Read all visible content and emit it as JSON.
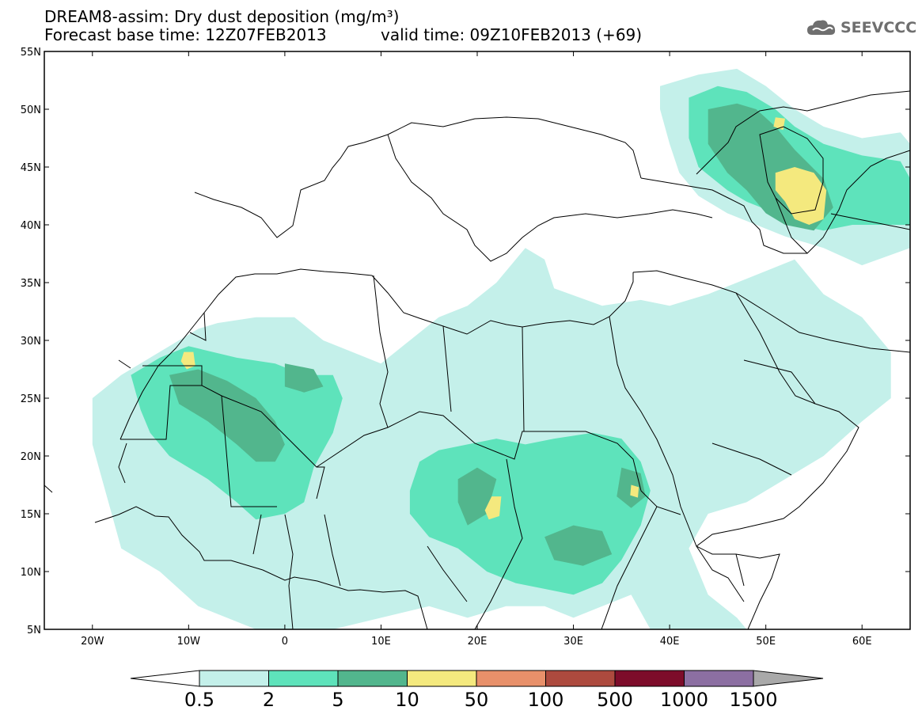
{
  "header": {
    "title": "DREAM8-assim: Dry dust deposition (mg/m³)",
    "base_time": "Forecast base time: 12Z07FEB2013",
    "valid_time": "valid time: 09Z10FEB2013 (+69)",
    "logo_text": "SEEVCCC"
  },
  "map": {
    "lon_range": [
      -25,
      65
    ],
    "lat_range": [
      5,
      55
    ],
    "lon_ticks": [
      {
        "value": -20,
        "label": "20W"
      },
      {
        "value": -10,
        "label": "10W"
      },
      {
        "value": 0,
        "label": "0"
      },
      {
        "value": 10,
        "label": "10E"
      },
      {
        "value": 20,
        "label": "20E"
      },
      {
        "value": 30,
        "label": "30E"
      },
      {
        "value": 40,
        "label": "40E"
      },
      {
        "value": 50,
        "label": "50E"
      },
      {
        "value": 60,
        "label": "60E"
      }
    ],
    "lat_ticks": [
      {
        "value": 55,
        "label": "55N"
      },
      {
        "value": 50,
        "label": "50N"
      },
      {
        "value": 45,
        "label": "45N"
      },
      {
        "value": 40,
        "label": "40N"
      },
      {
        "value": 35,
        "label": "35N"
      },
      {
        "value": 30,
        "label": "30N"
      },
      {
        "value": 25,
        "label": "25N"
      },
      {
        "value": 20,
        "label": "20N"
      },
      {
        "value": 15,
        "label": "15N"
      },
      {
        "value": 10,
        "label": "10N"
      },
      {
        "value": 5,
        "label": "5N"
      }
    ]
  },
  "colorbar": {
    "labels": [
      "0.5",
      "2",
      "5",
      "10",
      "50",
      "100",
      "500",
      "1000",
      "1500"
    ],
    "colors": [
      "#c4f0ea",
      "#5ee3bb",
      "#52b68d",
      "#f4e97e",
      "#e8906a",
      "#ad4a3e",
      "#7d0c2a",
      "#8c6fa2",
      "#a9a9a9"
    ],
    "under_color": "#ffffff"
  },
  "chart_data": {
    "type": "heatmap",
    "title": "DREAM8-assim: Dry dust deposition (mg/m³)",
    "levels": [
      0.5,
      2,
      5,
      10,
      50,
      100,
      500,
      1000,
      1500
    ],
    "units": "mg/m³",
    "xlim": [
      -25,
      65
    ],
    "ylim": [
      5,
      55
    ],
    "regions": [
      {
        "level": 0.5,
        "polygon": [
          [
            -20,
            25
          ],
          [
            -17,
            27
          ],
          [
            -12,
            29.5
          ],
          [
            -9,
            31
          ],
          [
            -7,
            31.5
          ],
          [
            -3,
            32
          ],
          [
            1,
            32
          ],
          [
            4,
            30
          ],
          [
            7,
            29
          ],
          [
            10,
            28
          ],
          [
            13,
            30
          ],
          [
            16,
            32
          ],
          [
            19,
            33
          ],
          [
            22,
            35
          ],
          [
            25,
            38
          ],
          [
            27,
            37
          ],
          [
            28,
            34.5
          ],
          [
            33,
            33
          ],
          [
            37,
            33.5
          ],
          [
            40,
            33
          ],
          [
            44,
            34
          ],
          [
            47,
            35
          ],
          [
            50,
            36
          ],
          [
            53,
            37
          ],
          [
            56,
            34
          ],
          [
            60,
            32
          ],
          [
            63,
            29
          ],
          [
            63,
            25
          ],
          [
            60,
            23
          ],
          [
            56,
            20
          ],
          [
            52,
            18
          ],
          [
            48,
            16
          ],
          [
            44,
            15
          ],
          [
            42,
            12
          ],
          [
            44,
            8
          ],
          [
            47,
            6
          ],
          [
            48,
            5
          ],
          [
            38,
            5
          ],
          [
            36,
            8
          ],
          [
            33,
            7
          ],
          [
            30,
            6
          ],
          [
            27,
            7
          ],
          [
            23,
            7
          ],
          [
            19,
            6
          ],
          [
            15,
            7
          ],
          [
            10,
            6
          ],
          [
            5,
            5
          ],
          [
            -3,
            5
          ],
          [
            -9,
            7
          ],
          [
            -13,
            10
          ],
          [
            -17,
            12
          ],
          [
            -18,
            15
          ],
          [
            -19,
            18
          ],
          [
            -20,
            21
          ]
        ]
      },
      {
        "level": 0.5,
        "polygon": [
          [
            39,
            52
          ],
          [
            43,
            53
          ],
          [
            47,
            53.5
          ],
          [
            50,
            52
          ],
          [
            53,
            50
          ],
          [
            56,
            48.5
          ],
          [
            60,
            47.5
          ],
          [
            64,
            48
          ],
          [
            65,
            47
          ],
          [
            65,
            38
          ],
          [
            60,
            36.5
          ],
          [
            56,
            38
          ],
          [
            52,
            39
          ],
          [
            49,
            40
          ],
          [
            46,
            41
          ],
          [
            43,
            42.5
          ],
          [
            41,
            44.5
          ],
          [
            40,
            47
          ],
          [
            39,
            50
          ]
        ]
      },
      {
        "level": 2,
        "polygon": [
          [
            -16,
            27
          ],
          [
            -13,
            28.5
          ],
          [
            -10,
            29.5
          ],
          [
            -5,
            28.5
          ],
          [
            -1,
            28
          ],
          [
            2,
            27
          ],
          [
            5,
            27
          ],
          [
            6,
            25
          ],
          [
            5,
            22
          ],
          [
            3,
            19
          ],
          [
            2,
            16
          ],
          [
            0,
            15
          ],
          [
            -3,
            14.5
          ],
          [
            -5,
            16
          ],
          [
            -8,
            18
          ],
          [
            -12,
            20
          ],
          [
            -14,
            22
          ],
          [
            -15,
            24
          ]
        ]
      },
      {
        "level": 2,
        "polygon": [
          [
            14,
            19.5
          ],
          [
            16,
            20.5
          ],
          [
            19,
            21
          ],
          [
            22,
            21.5
          ],
          [
            25,
            21
          ],
          [
            28,
            21.5
          ],
          [
            32,
            22
          ],
          [
            35,
            21.5
          ],
          [
            37,
            19.5
          ],
          [
            38,
            17
          ],
          [
            37,
            14
          ],
          [
            35,
            11
          ],
          [
            33,
            9
          ],
          [
            30,
            8
          ],
          [
            27,
            8.5
          ],
          [
            24,
            9
          ],
          [
            21,
            10
          ],
          [
            18,
            12
          ],
          [
            15,
            13
          ],
          [
            13,
            15
          ],
          [
            13,
            17
          ]
        ]
      },
      {
        "level": 2,
        "polygon": [
          [
            42,
            51
          ],
          [
            45,
            52
          ],
          [
            48,
            51.5
          ],
          [
            51,
            50
          ],
          [
            53,
            48.5
          ],
          [
            56,
            47
          ],
          [
            60,
            46
          ],
          [
            64,
            45.5
          ],
          [
            65,
            44
          ],
          [
            65,
            40
          ],
          [
            62,
            40
          ],
          [
            59,
            40
          ],
          [
            56,
            39.5
          ],
          [
            53,
            40
          ],
          [
            51,
            41
          ],
          [
            48,
            42
          ],
          [
            46,
            43
          ],
          [
            43,
            45
          ],
          [
            42,
            47.5
          ]
        ]
      },
      {
        "level": 5,
        "polygon": [
          [
            -12,
            27
          ],
          [
            -9,
            27.5
          ],
          [
            -6,
            26.5
          ],
          [
            -3,
            25
          ],
          [
            -1,
            23
          ],
          [
            0,
            21
          ],
          [
            -1,
            19.5
          ],
          [
            -3,
            19.5
          ],
          [
            -5,
            21
          ],
          [
            -8,
            23
          ],
          [
            -11,
            24.5
          ]
        ]
      },
      {
        "level": 5,
        "polygon": [
          [
            0,
            28
          ],
          [
            3,
            27.5
          ],
          [
            4,
            26
          ],
          [
            2,
            25.5
          ],
          [
            0,
            26
          ]
        ]
      },
      {
        "level": 5,
        "polygon": [
          [
            18,
            18
          ],
          [
            20,
            19
          ],
          [
            22,
            18
          ],
          [
            21,
            15
          ],
          [
            19,
            14
          ],
          [
            18,
            16
          ]
        ]
      },
      {
        "level": 5,
        "polygon": [
          [
            27,
            13
          ],
          [
            30,
            14
          ],
          [
            33,
            13.5
          ],
          [
            34,
            11.5
          ],
          [
            31,
            10.5
          ],
          [
            28,
            11
          ]
        ]
      },
      {
        "level": 5,
        "polygon": [
          [
            35,
            19
          ],
          [
            37,
            18.5
          ],
          [
            37.5,
            16.5
          ],
          [
            36,
            15.5
          ],
          [
            34.5,
            16.5
          ]
        ]
      },
      {
        "level": 5,
        "polygon": [
          [
            44,
            50
          ],
          [
            47,
            50.5
          ],
          [
            49,
            50
          ],
          [
            51,
            48.5
          ],
          [
            53,
            46.5
          ],
          [
            56,
            44
          ],
          [
            57,
            41.5
          ],
          [
            55,
            39.5
          ],
          [
            52,
            40
          ],
          [
            50,
            41
          ],
          [
            48,
            43
          ],
          [
            46,
            44.5
          ],
          [
            44,
            47
          ]
        ]
      },
      {
        "level": 10,
        "polygon": [
          [
            -10.5,
            29
          ],
          [
            -9.5,
            29
          ],
          [
            -9.3,
            27.8
          ],
          [
            -10.2,
            27.5
          ],
          [
            -10.8,
            28.2
          ]
        ]
      },
      {
        "level": 10,
        "polygon": [
          [
            21.5,
            16.5
          ],
          [
            22.5,
            16.5
          ],
          [
            22.3,
            14.8
          ],
          [
            21.2,
            14.5
          ],
          [
            20.8,
            15.3
          ]
        ]
      },
      {
        "level": 10,
        "polygon": [
          [
            36,
            17.5
          ],
          [
            36.8,
            17.3
          ],
          [
            36.7,
            16.4
          ],
          [
            35.9,
            16.6
          ]
        ]
      },
      {
        "level": 10,
        "polygon": [
          [
            51,
            49.3
          ],
          [
            52,
            49.2
          ],
          [
            51.8,
            48.2
          ],
          [
            50.8,
            48.5
          ]
        ]
      },
      {
        "level": 10,
        "polygon": [
          [
            51,
            44.5
          ],
          [
            53,
            45
          ],
          [
            55,
            44.5
          ],
          [
            56.3,
            43
          ],
          [
            56,
            40.5
          ],
          [
            54.5,
            40
          ],
          [
            53,
            40.5
          ],
          [
            52,
            42
          ],
          [
            51,
            43
          ]
        ]
      }
    ]
  }
}
